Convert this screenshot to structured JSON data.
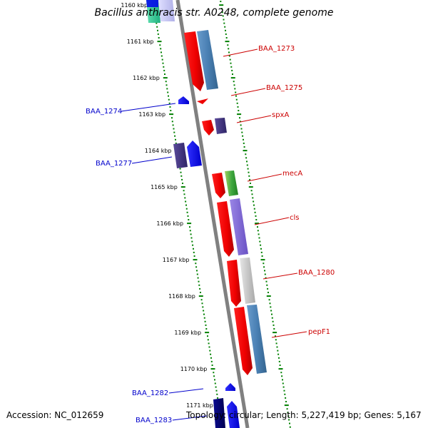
{
  "title": "Bacillus anthracis str. A0248, complete genome",
  "accession": "Accession: NC_012659",
  "summary": "Topology: circular; Length: 5,227,419 bp; Genes: 5,167",
  "ticks": [
    "1160 kbp",
    "1161 kbp",
    "1162 kbp",
    "1163 kbp",
    "1164 kbp",
    "1165 kbp",
    "1166 kbp",
    "1167 kbp",
    "1168 kbp",
    "1169 kbp",
    "1170 kbp",
    "1171 kbp"
  ],
  "colors": {
    "forward_label": "#cc0000",
    "reverse_label": "#0000cc",
    "backbone": "#808080",
    "tick_dots": "#008000"
  },
  "genes": [
    {
      "name": "BAA_1273",
      "strand": "forward"
    },
    {
      "name": "BAA_1275",
      "strand": "forward"
    },
    {
      "name": "spxA",
      "strand": "forward"
    },
    {
      "name": "mecA",
      "strand": "forward"
    },
    {
      "name": "cls",
      "strand": "forward"
    },
    {
      "name": "BAA_1280",
      "strand": "forward"
    },
    {
      "name": "pepF1",
      "strand": "forward"
    },
    {
      "name": "BAA_1274",
      "strand": "reverse"
    },
    {
      "name": "BAA_1277",
      "strand": "reverse"
    },
    {
      "name": "BAA_1282",
      "strand": "reverse"
    },
    {
      "name": "BAA_1283",
      "strand": "reverse"
    }
  ]
}
